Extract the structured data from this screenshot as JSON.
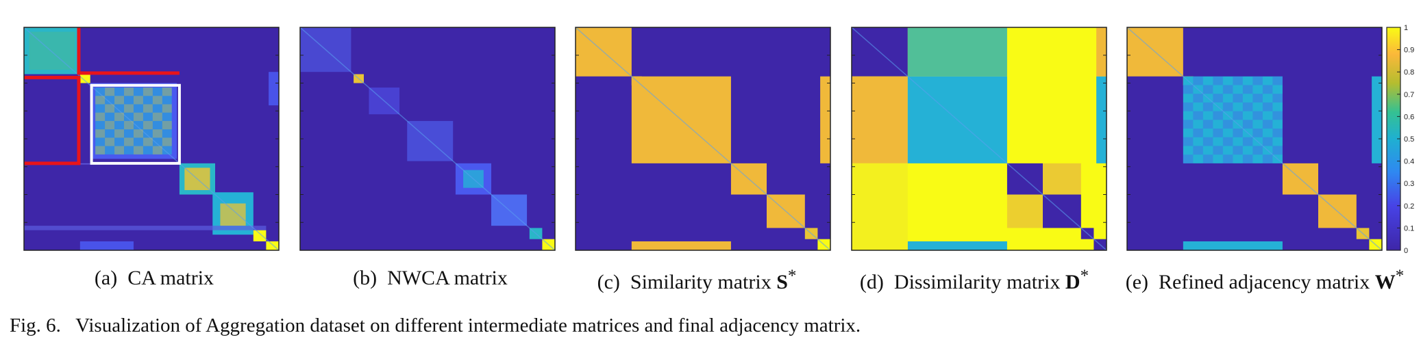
{
  "figure": {
    "number": "Fig. 6.",
    "caption": "Visualization of Aggregation dataset on different intermediate matrices and final adjacency matrix."
  },
  "panels": [
    {
      "id": "a",
      "label": "(a)",
      "title": "CA matrix",
      "symbol": "",
      "sup": ""
    },
    {
      "id": "b",
      "label": "(b)",
      "title": "NWCA matrix",
      "symbol": "",
      "sup": ""
    },
    {
      "id": "c",
      "label": "(c)",
      "title": "Similarity matrix",
      "symbol": "S",
      "sup": "*"
    },
    {
      "id": "d",
      "label": "(d)",
      "title": "Dissimilarity matrix",
      "symbol": "D",
      "sup": "*"
    },
    {
      "id": "e",
      "label": "(e)",
      "title": "Refined adjacency matrix",
      "symbol": "W",
      "sup": "*"
    }
  ],
  "colorbar": {
    "ticks": [
      "1",
      "0.9",
      "0.8",
      "0.7",
      "0.6",
      "0.5",
      "0.4",
      "0.3",
      "0.2",
      "0.1",
      "0"
    ],
    "range": [
      0,
      1
    ],
    "colormap": "parula"
  },
  "colors": {
    "low": "#3e26a8",
    "mid": "#2fb1c9",
    "high": "#f9fb15",
    "highlight_red": "#e8141a",
    "highlight_white": "#ffffff"
  }
}
